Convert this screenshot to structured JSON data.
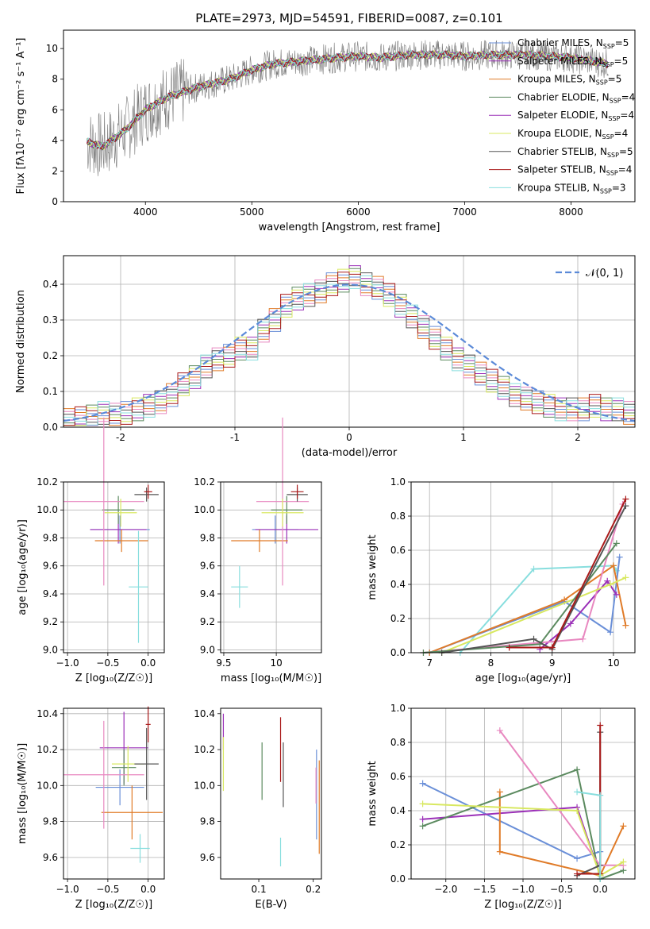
{
  "page_title": "PLATE=2973, MJD=54591, FIBERID=0087, z=0.101",
  "colors": {
    "c1": "#6a8fd8",
    "c2": "#9b30b8",
    "c3": "#e07b28",
    "c4": "#5b8a5f",
    "c5": "#e888c0",
    "c6": "#d8e860",
    "c7": "#555555",
    "c8": "#aa1a1a",
    "c9": "#88dede"
  },
  "chart_data": [
    {
      "id": "spectrum",
      "type": "line",
      "xlabel": "wavelength [Angstrom, rest frame]",
      "ylabel": "Flux [fλ10⁻¹⁷ erg cm⁻² s⁻¹ A⁻¹]",
      "xlim": [
        3230,
        8600
      ],
      "ylim": [
        0,
        11.2
      ],
      "xticks": [
        4000,
        5000,
        6000,
        7000,
        8000
      ],
      "yticks": [
        0,
        2,
        4,
        6,
        8,
        10
      ],
      "grid": false,
      "legend_position": "top-right",
      "data_x": [
        3450,
        3600,
        3800,
        4000,
        4200,
        4500,
        4800,
        5000,
        5200,
        5500,
        5800,
        6000,
        6200,
        6500,
        6800,
        7000,
        7300,
        7600,
        8000,
        8350
      ],
      "data_y": [
        3.9,
        3.6,
        4.6,
        6.0,
        6.8,
        7.5,
        8.0,
        8.6,
        9.0,
        9.2,
        9.4,
        9.5,
        9.4,
        9.6,
        9.6,
        9.5,
        9.6,
        9.6,
        9.4,
        9.0
      ],
      "series": [
        {
          "name": "Chabrier MILES, N_SSP=5",
          "label": "Chabrier MILES, N",
          "sub": "SSP",
          "suffix": "=5",
          "color": "#6a8fd8"
        },
        {
          "name": "Salpeter MILES, N_SSP=5",
          "label": "Salpeter MILES, N",
          "sub": "SSP",
          "suffix": "=5",
          "color": "#9b30b8"
        },
        {
          "name": "Kroupa MILES, N_SSP=5",
          "label": "Kroupa MILES, N",
          "sub": "SSP",
          "suffix": "=5",
          "color": "#e07b28"
        },
        {
          "name": "Chabrier ELODIE, N_SSP=4",
          "label": "Chabrier ELODIE, N",
          "sub": "SSP",
          "suffix": "=4",
          "color": "#5b8a5f"
        },
        {
          "name": "Salpeter ELODIE, N_SSP=4",
          "label": "Salpeter ELODIE, N",
          "sub": "SSP",
          "suffix": "=4",
          "color": "#9b30b8"
        },
        {
          "name": "Kroupa ELODIE, N_SSP=4",
          "label": "Kroupa ELODIE, N",
          "sub": "SSP",
          "suffix": "=4",
          "color": "#d8e860"
        },
        {
          "name": "Chabrier STELIB, N_SSP=5",
          "label": "Chabrier STELIB, N",
          "sub": "SSP",
          "suffix": "=5",
          "color": "#555555"
        },
        {
          "name": "Salpeter STELIB, N_SSP=4",
          "label": "Salpeter STELIB, N",
          "sub": "SSP",
          "suffix": "=4",
          "color": "#aa1a1a"
        },
        {
          "name": "Kroupa STELIB, N_SSP=3",
          "label": "Kroupa STELIB, N",
          "sub": "SSP",
          "suffix": "=3",
          "color": "#88dede"
        }
      ]
    },
    {
      "id": "residuals",
      "type": "histogram",
      "xlabel": "(data-model)/error",
      "ylabel": "Normed distribution",
      "xlim": [
        -2.5,
        2.5
      ],
      "ylim": [
        0,
        0.48
      ],
      "xticks": [
        -2,
        -1,
        0,
        1,
        2
      ],
      "yticks": [
        0.0,
        0.1,
        0.2,
        0.3,
        0.4
      ],
      "grid": true,
      "legend_label": "𝒩(0, 1)",
      "bin_edges_start": -2.5,
      "bin_width": 0.1,
      "hist_values": [
        0.02,
        0.025,
        0.03,
        0.04,
        0.035,
        0.04,
        0.05,
        0.06,
        0.07,
        0.09,
        0.12,
        0.14,
        0.17,
        0.19,
        0.2,
        0.22,
        0.22,
        0.27,
        0.3,
        0.34,
        0.36,
        0.37,
        0.38,
        0.4,
        0.41,
        0.42,
        0.4,
        0.39,
        0.37,
        0.34,
        0.31,
        0.28,
        0.25,
        0.22,
        0.19,
        0.17,
        0.15,
        0.13,
        0.11,
        0.09,
        0.08,
        0.07,
        0.06,
        0.05,
        0.05,
        0.05,
        0.06,
        0.05,
        0.05,
        0.04
      ]
    },
    {
      "id": "z-age",
      "type": "scatter",
      "xlabel": "Z [log₁₀(Z/Z☉)]",
      "ylabel": "age  [log₁₀(age/yr)]",
      "xlim": [
        -1.05,
        0.2
      ],
      "ylim": [
        8.98,
        10.2
      ],
      "xticks": [
        -1.0,
        -0.5,
        0.0
      ],
      "xticklabels": [
        "−1.0",
        "−0.5",
        "0.0"
      ],
      "yticks": [
        9.0,
        9.2,
        9.4,
        9.6,
        9.8,
        10.0,
        10.2
      ],
      "grid": true,
      "points": [
        {
          "x": -0.35,
          "y": 9.86,
          "xerr": 0.37,
          "yerr": 0.1,
          "color": "#6a8fd8"
        },
        {
          "x": -0.37,
          "y": 9.86,
          "xerr": 0.35,
          "yerr": 0.1,
          "color": "#9b30b8"
        },
        {
          "x": -0.33,
          "y": 9.78,
          "xerr": 0.33,
          "yerr": 0.08,
          "color": "#e07b28"
        },
        {
          "x": -0.37,
          "y": 10.0,
          "xerr": 0.2,
          "yerr": 0.1,
          "color": "#5b8a5f"
        },
        {
          "x": -0.55,
          "y": 10.06,
          "xerr": 0.5,
          "yerr": 0.6,
          "color": "#e888c0"
        },
        {
          "x": -0.34,
          "y": 9.98,
          "xerr": 0.2,
          "yerr": 0.1,
          "color": "#d8e860"
        },
        {
          "x": -0.02,
          "y": 10.11,
          "xerr": 0.15,
          "yerr": 0.05,
          "color": "#555555"
        },
        {
          "x": 0.0,
          "y": 10.13,
          "xerr": 0.05,
          "yerr": 0.05,
          "color": "#aa1a1a"
        },
        {
          "x": -0.12,
          "y": 9.45,
          "xerr": 0.12,
          "yerr": 0.4,
          "color": "#88dede"
        }
      ]
    },
    {
      "id": "mass-age",
      "type": "scatter",
      "xlabel": "mass [log₁₀(M/M☉)]",
      "xlim": [
        9.47,
        10.43
      ],
      "ylim": [
        8.98,
        10.2
      ],
      "xticks": [
        9.5,
        10.0
      ],
      "yticks": [
        9.0,
        9.2,
        9.4,
        9.6,
        9.8,
        10.0,
        10.2
      ],
      "grid": true,
      "points": [
        {
          "x": 9.99,
          "y": 9.86,
          "xerr": 0.22,
          "yerr": 0.1,
          "color": "#6a8fd8"
        },
        {
          "x": 10.1,
          "y": 9.86,
          "xerr": 0.3,
          "yerr": 0.1,
          "color": "#9b30b8"
        },
        {
          "x": 9.84,
          "y": 9.78,
          "xerr": 0.27,
          "yerr": 0.08,
          "color": "#e07b28"
        },
        {
          "x": 10.1,
          "y": 10.0,
          "xerr": 0.15,
          "yerr": 0.1,
          "color": "#5b8a5f"
        },
        {
          "x": 10.06,
          "y": 10.06,
          "xerr": 0.25,
          "yerr": 0.6,
          "color": "#e888c0"
        },
        {
          "x": 10.06,
          "y": 9.98,
          "xerr": 0.2,
          "yerr": 0.1,
          "color": "#d8e860"
        },
        {
          "x": 10.2,
          "y": 10.11,
          "xerr": 0.1,
          "yerr": 0.05,
          "color": "#555555"
        },
        {
          "x": 10.2,
          "y": 10.13,
          "xerr": 0.06,
          "yerr": 0.05,
          "color": "#aa1a1a"
        },
        {
          "x": 9.65,
          "y": 9.45,
          "xerr": 0.08,
          "yerr": 0.15,
          "color": "#88dede"
        }
      ]
    },
    {
      "id": "age-weight",
      "type": "line",
      "xlabel": "age  [log₁₀(age/yr)]",
      "ylabel": "mass weight",
      "xlim": [
        6.7,
        10.35
      ],
      "ylim": [
        0,
        1.0
      ],
      "xticks": [
        7,
        8,
        9,
        10
      ],
      "yticks": [
        0.0,
        0.2,
        0.4,
        0.6,
        0.8,
        1.0
      ],
      "grid": true,
      "series": [
        {
          "color": "#88dede",
          "x": [
            7.5,
            8.7,
            10.0,
            10.05
          ],
          "y": [
            0.0,
            0.49,
            0.51,
            0.48
          ]
        },
        {
          "color": "#6a8fd8",
          "x": [
            7.0,
            9.2,
            9.95,
            10.1
          ],
          "y": [
            0.0,
            0.3,
            0.12,
            0.56
          ]
        },
        {
          "color": "#e07b28",
          "x": [
            7.0,
            9.2,
            10.0,
            10.2
          ],
          "y": [
            0.0,
            0.31,
            0.51,
            0.16
          ]
        },
        {
          "color": "#9b30b8",
          "x": [
            8.8,
            9.3,
            9.9,
            10.05
          ],
          "y": [
            0.02,
            0.17,
            0.42,
            0.34
          ]
        },
        {
          "color": "#e888c0",
          "x": [
            6.9,
            9.5,
            10.15
          ],
          "y": [
            0.0,
            0.08,
            0.87
          ]
        },
        {
          "color": "#d8e860",
          "x": [
            7.2,
            9.95,
            10.2
          ],
          "y": [
            0.0,
            0.4,
            0.44
          ]
        },
        {
          "color": "#5b8a5f",
          "x": [
            6.9,
            8.8,
            10.05
          ],
          "y": [
            0.0,
            0.05,
            0.64
          ]
        },
        {
          "color": "#555555",
          "x": [
            7.2,
            8.7,
            9.0,
            10.2
          ],
          "y": [
            0.0,
            0.08,
            0.02,
            0.86
          ]
        },
        {
          "color": "#aa1a1a",
          "x": [
            8.3,
            9.0,
            10.2
          ],
          "y": [
            0.03,
            0.03,
            0.9
          ]
        }
      ]
    },
    {
      "id": "z-mass",
      "type": "scatter",
      "xlabel": "Z [log₁₀(Z/Z☉)]",
      "ylabel": "mass [log₁₀(M/M☉)]",
      "xlim": [
        -1.05,
        0.2
      ],
      "ylim": [
        9.48,
        10.43
      ],
      "xticks": [
        -1.0,
        -0.5,
        0.0
      ],
      "xticklabels": [
        "−1.0",
        "−0.5",
        "0.0"
      ],
      "yticks": [
        9.6,
        9.8,
        10.0,
        10.2,
        10.4
      ],
      "grid": true,
      "points": [
        {
          "x": -0.35,
          "y": 9.99,
          "xerr": 0.3,
          "yerr": 0.1,
          "color": "#6a8fd8"
        },
        {
          "x": -0.3,
          "y": 10.21,
          "xerr": 0.3,
          "yerr": 0.2,
          "color": "#9b30b8"
        },
        {
          "x": -0.2,
          "y": 9.85,
          "xerr": 0.38,
          "yerr": 0.15,
          "color": "#e07b28"
        },
        {
          "x": -0.3,
          "y": 10.1,
          "xerr": 0.15,
          "yerr": 0.1,
          "color": "#5b8a5f"
        },
        {
          "x": -0.55,
          "y": 10.06,
          "xerr": 0.5,
          "yerr": 0.3,
          "color": "#e888c0"
        },
        {
          "x": -0.25,
          "y": 10.12,
          "xerr": 0.2,
          "yerr": 0.1,
          "color": "#d8e860"
        },
        {
          "x": -0.02,
          "y": 10.12,
          "xerr": 0.15,
          "yerr": 0.2,
          "color": "#555555"
        },
        {
          "x": 0.0,
          "y": 10.34,
          "xerr": 0.03,
          "yerr": 0.1,
          "color": "#aa1a1a"
        },
        {
          "x": -0.1,
          "y": 9.65,
          "xerr": 0.12,
          "yerr": 0.08,
          "color": "#88dede"
        }
      ]
    },
    {
      "id": "ebv-mass",
      "type": "scatter",
      "xlabel": "E(B-V)",
      "xlim": [
        0.03,
        0.215
      ],
      "ylim": [
        9.48,
        10.43
      ],
      "xticks": [
        0.1,
        0.2
      ],
      "yticks": [
        9.6,
        9.8,
        10.0,
        10.2,
        10.4
      ],
      "grid": false,
      "points": [
        {
          "x": 0.206,
          "y": 9.95,
          "yerr": 0.25,
          "color": "#6a8fd8"
        },
        {
          "x": 0.035,
          "y": 10.3,
          "yerr": 0.1,
          "color": "#9b30b8"
        },
        {
          "x": 0.211,
          "y": 9.88,
          "yerr": 0.26,
          "color": "#e07b28"
        },
        {
          "x": 0.106,
          "y": 10.08,
          "yerr": 0.16,
          "color": "#5b8a5f"
        },
        {
          "x": 0.205,
          "y": 10.0,
          "yerr": 0.1,
          "color": "#e888c0"
        },
        {
          "x": 0.035,
          "y": 10.12,
          "yerr": 0.15,
          "color": "#d8e860"
        },
        {
          "x": 0.145,
          "y": 10.06,
          "yerr": 0.18,
          "color": "#555555"
        },
        {
          "x": 0.14,
          "y": 10.2,
          "yerr": 0.18,
          "color": "#aa1a1a"
        },
        {
          "x": 0.14,
          "y": 9.63,
          "yerr": 0.08,
          "color": "#88dede"
        }
      ]
    },
    {
      "id": "z-weight",
      "type": "line",
      "xlabel": "Z [log₁₀(Z/Z☉)]",
      "ylabel": "mass weight",
      "xlim": [
        -2.45,
        0.45
      ],
      "ylim": [
        0,
        1.0
      ],
      "xticks": [
        -2.0,
        -1.5,
        -1.0,
        -0.5,
        0.0
      ],
      "xticklabels": [
        "−2.0",
        "−1.5",
        "−1.0",
        "−0.5",
        "0.0"
      ],
      "yticks": [
        0.0,
        0.2,
        0.4,
        0.6,
        0.8,
        1.0
      ],
      "grid": true,
      "series": [
        {
          "color": "#6a8fd8",
          "x": [
            -2.3,
            -0.3,
            0.0
          ],
          "y": [
            0.56,
            0.12,
            0.16
          ]
        },
        {
          "color": "#9b30b8",
          "x": [
            -2.3,
            -0.3,
            0.0
          ],
          "y": [
            0.35,
            0.42,
            0.02
          ]
        },
        {
          "color": "#e07b28",
          "x": [
            -1.3,
            -1.3,
            0.0,
            0.3
          ],
          "y": [
            0.51,
            0.16,
            0.02,
            0.31
          ]
        },
        {
          "color": "#5b8a5f",
          "x": [
            -2.3,
            -0.3,
            0.0,
            0.3
          ],
          "y": [
            0.31,
            0.64,
            0.0,
            0.05
          ]
        },
        {
          "color": "#e888c0",
          "x": [
            -1.3,
            0.0,
            0.3
          ],
          "y": [
            0.87,
            0.08,
            0.08
          ]
        },
        {
          "color": "#d8e860",
          "x": [
            -2.3,
            -0.3,
            0.0,
            0.3
          ],
          "y": [
            0.44,
            0.4,
            0.02,
            0.1
          ]
        },
        {
          "color": "#555555",
          "x": [
            -0.3,
            0.0,
            0.0
          ],
          "y": [
            0.02,
            0.08,
            0.86
          ]
        },
        {
          "color": "#aa1a1a",
          "x": [
            -0.3,
            0.0,
            0.0
          ],
          "y": [
            0.03,
            0.03,
            0.9
          ]
        },
        {
          "color": "#88dede",
          "x": [
            -0.3,
            0.0,
            0.0
          ],
          "y": [
            0.51,
            0.49,
            0.0
          ]
        }
      ]
    }
  ]
}
